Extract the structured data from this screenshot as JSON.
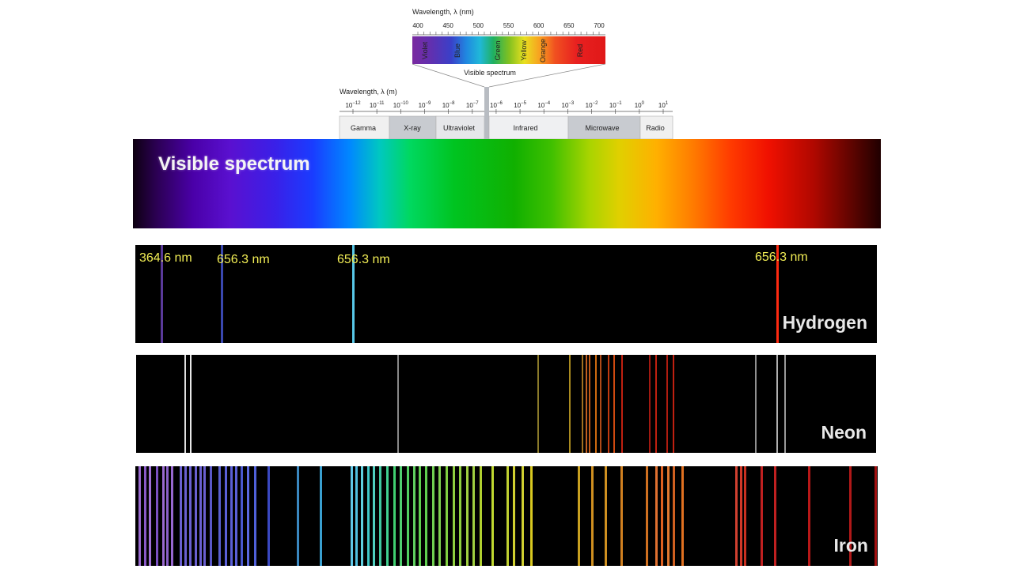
{
  "inset": {
    "nm_axis_title": "Wavelength, λ (nm)",
    "nm_ticks": [
      "400",
      "450",
      "500",
      "550",
      "600",
      "650",
      "700"
    ],
    "color_names": [
      "Violet",
      "Blue",
      "Green",
      "Yellow",
      "Orange",
      "Red"
    ],
    "visible_label": "Visible spectrum",
    "m_axis_title": "Wavelength, λ (m)",
    "m_ticks": [
      {
        "base": "10",
        "exp": "−12"
      },
      {
        "base": "10",
        "exp": "−11"
      },
      {
        "base": "10",
        "exp": "−10"
      },
      {
        "base": "10",
        "exp": "−9"
      },
      {
        "base": "10",
        "exp": "−8"
      },
      {
        "base": "10",
        "exp": "−7"
      },
      {
        "base": "10",
        "exp": "−6"
      },
      {
        "base": "10",
        "exp": "−5"
      },
      {
        "base": "10",
        "exp": "−4"
      },
      {
        "base": "10",
        "exp": "−3"
      },
      {
        "base": "10",
        "exp": "−2"
      },
      {
        "base": "10",
        "exp": "−1"
      },
      {
        "base": "10",
        "exp": "0"
      },
      {
        "base": "10",
        "exp": "1"
      }
    ],
    "bands": [
      "Gamma",
      "X-ray",
      "Ultraviolet",
      "Infrared",
      "Microwave",
      "Radio"
    ]
  },
  "visible_bar": {
    "title": "Visible spectrum"
  },
  "hydrogen": {
    "name": "Hydrogen",
    "labels": [
      "364.6 nm",
      "656.3 nm",
      "656.3 nm",
      "656.3 nm"
    ],
    "lines": [
      {
        "pos": 0.034,
        "color": "#5a3a9a"
      },
      {
        "pos": 0.115,
        "color": "#3a48b0"
      },
      {
        "pos": 0.292,
        "color": "#58c8e8"
      },
      {
        "pos": 0.864,
        "color": "#ff2a10"
      }
    ]
  },
  "neon": {
    "name": "Neon",
    "lines": [
      {
        "pos": 0.065,
        "color": "#e0e0e0"
      },
      {
        "pos": 0.073,
        "color": "#e8e8e8"
      },
      {
        "pos": 0.353,
        "color": "#888888"
      },
      {
        "pos": 0.542,
        "color": "#8a7a2a"
      },
      {
        "pos": 0.585,
        "color": "#a88a20"
      },
      {
        "pos": 0.602,
        "color": "#a07020"
      },
      {
        "pos": 0.607,
        "color": "#c06020"
      },
      {
        "pos": 0.612,
        "color": "#c05a18"
      },
      {
        "pos": 0.62,
        "color": "#d06a10"
      },
      {
        "pos": 0.627,
        "color": "#b04a18"
      },
      {
        "pos": 0.637,
        "color": "#c03a10"
      },
      {
        "pos": 0.645,
        "color": "#d04a10"
      },
      {
        "pos": 0.656,
        "color": "#c02010"
      },
      {
        "pos": 0.693,
        "color": "#a01810"
      },
      {
        "pos": 0.702,
        "color": "#c02010"
      },
      {
        "pos": 0.717,
        "color": "#b01c10"
      },
      {
        "pos": 0.725,
        "color": "#c02010"
      },
      {
        "pos": 0.836,
        "color": "#909090"
      },
      {
        "pos": 0.865,
        "color": "#b0b0b0"
      },
      {
        "pos": 0.876,
        "color": "#9a9a9a"
      }
    ]
  },
  "iron": {
    "name": "Iron",
    "lines": [
      {
        "pos": 0.004,
        "color": "#9a6ad0"
      },
      {
        "pos": 0.012,
        "color": "#8a5ac8"
      },
      {
        "pos": 0.018,
        "color": "#a070d8"
      },
      {
        "pos": 0.028,
        "color": "#7a50c0"
      },
      {
        "pos": 0.036,
        "color": "#9a6ad0"
      },
      {
        "pos": 0.042,
        "color": "#8a60c8"
      },
      {
        "pos": 0.048,
        "color": "#9868d0"
      },
      {
        "pos": 0.06,
        "color": "#6a60d0"
      },
      {
        "pos": 0.066,
        "color": "#6a60d0"
      },
      {
        "pos": 0.072,
        "color": "#6a60d0"
      },
      {
        "pos": 0.08,
        "color": "#6a60d0"
      },
      {
        "pos": 0.086,
        "color": "#6a60d0"
      },
      {
        "pos": 0.092,
        "color": "#6a60d0"
      },
      {
        "pos": 0.1,
        "color": "#5a58c8"
      },
      {
        "pos": 0.112,
        "color": "#5a60d0"
      },
      {
        "pos": 0.12,
        "color": "#5a60d8"
      },
      {
        "pos": 0.128,
        "color": "#5a60d8"
      },
      {
        "pos": 0.134,
        "color": "#5a60d8"
      },
      {
        "pos": 0.142,
        "color": "#4a58d0"
      },
      {
        "pos": 0.15,
        "color": "#5a68e0"
      },
      {
        "pos": 0.16,
        "color": "#5060d8"
      },
      {
        "pos": 0.178,
        "color": "#3a48c0"
      },
      {
        "pos": 0.218,
        "color": "#3a88c0"
      },
      {
        "pos": 0.248,
        "color": "#3aa0d0"
      },
      {
        "pos": 0.29,
        "color": "#60c8e8"
      },
      {
        "pos": 0.296,
        "color": "#50c0e0"
      },
      {
        "pos": 0.304,
        "color": "#60d0e0"
      },
      {
        "pos": 0.312,
        "color": "#40c8c8"
      },
      {
        "pos": 0.32,
        "color": "#50d0c0"
      },
      {
        "pos": 0.328,
        "color": "#40c8a0"
      },
      {
        "pos": 0.338,
        "color": "#40d090"
      },
      {
        "pos": 0.348,
        "color": "#40d070"
      },
      {
        "pos": 0.356,
        "color": "#50d070"
      },
      {
        "pos": 0.366,
        "color": "#50d060"
      },
      {
        "pos": 0.374,
        "color": "#60d060"
      },
      {
        "pos": 0.382,
        "color": "#60d050"
      },
      {
        "pos": 0.39,
        "color": "#60d050"
      },
      {
        "pos": 0.4,
        "color": "#70d050"
      },
      {
        "pos": 0.408,
        "color": "#80d050"
      },
      {
        "pos": 0.418,
        "color": "#80d040"
      },
      {
        "pos": 0.428,
        "color": "#90d040"
      },
      {
        "pos": 0.436,
        "color": "#90d040"
      },
      {
        "pos": 0.446,
        "color": "#a0d040"
      },
      {
        "pos": 0.454,
        "color": "#a0d040"
      },
      {
        "pos": 0.464,
        "color": "#b0d030"
      },
      {
        "pos": 0.48,
        "color": "#c0d830"
      },
      {
        "pos": 0.5,
        "color": "#c0d030"
      },
      {
        "pos": 0.508,
        "color": "#d0d030"
      },
      {
        "pos": 0.52,
        "color": "#d0d030"
      },
      {
        "pos": 0.532,
        "color": "#d8c820"
      },
      {
        "pos": 0.596,
        "color": "#c8a020"
      },
      {
        "pos": 0.614,
        "color": "#d09020"
      },
      {
        "pos": 0.632,
        "color": "#d09020"
      },
      {
        "pos": 0.654,
        "color": "#d08020"
      },
      {
        "pos": 0.688,
        "color": "#d07020"
      },
      {
        "pos": 0.7,
        "color": "#e07030"
      },
      {
        "pos": 0.708,
        "color": "#e06020"
      },
      {
        "pos": 0.716,
        "color": "#e07830"
      },
      {
        "pos": 0.724,
        "color": "#d06020"
      },
      {
        "pos": 0.736,
        "color": "#e07020"
      },
      {
        "pos": 0.808,
        "color": "#d04030"
      },
      {
        "pos": 0.814,
        "color": "#d03828"
      },
      {
        "pos": 0.82,
        "color": "#c83020"
      },
      {
        "pos": 0.842,
        "color": "#c02020"
      },
      {
        "pos": 0.86,
        "color": "#c02020"
      },
      {
        "pos": 0.906,
        "color": "#b81818"
      },
      {
        "pos": 0.962,
        "color": "#b01818"
      },
      {
        "pos": 0.996,
        "color": "#a01010"
      }
    ]
  },
  "colors": {
    "visible_bar_title": "#f4f4f4",
    "wavelength_label": "#f2ee55",
    "strip_background": "#000000"
  }
}
